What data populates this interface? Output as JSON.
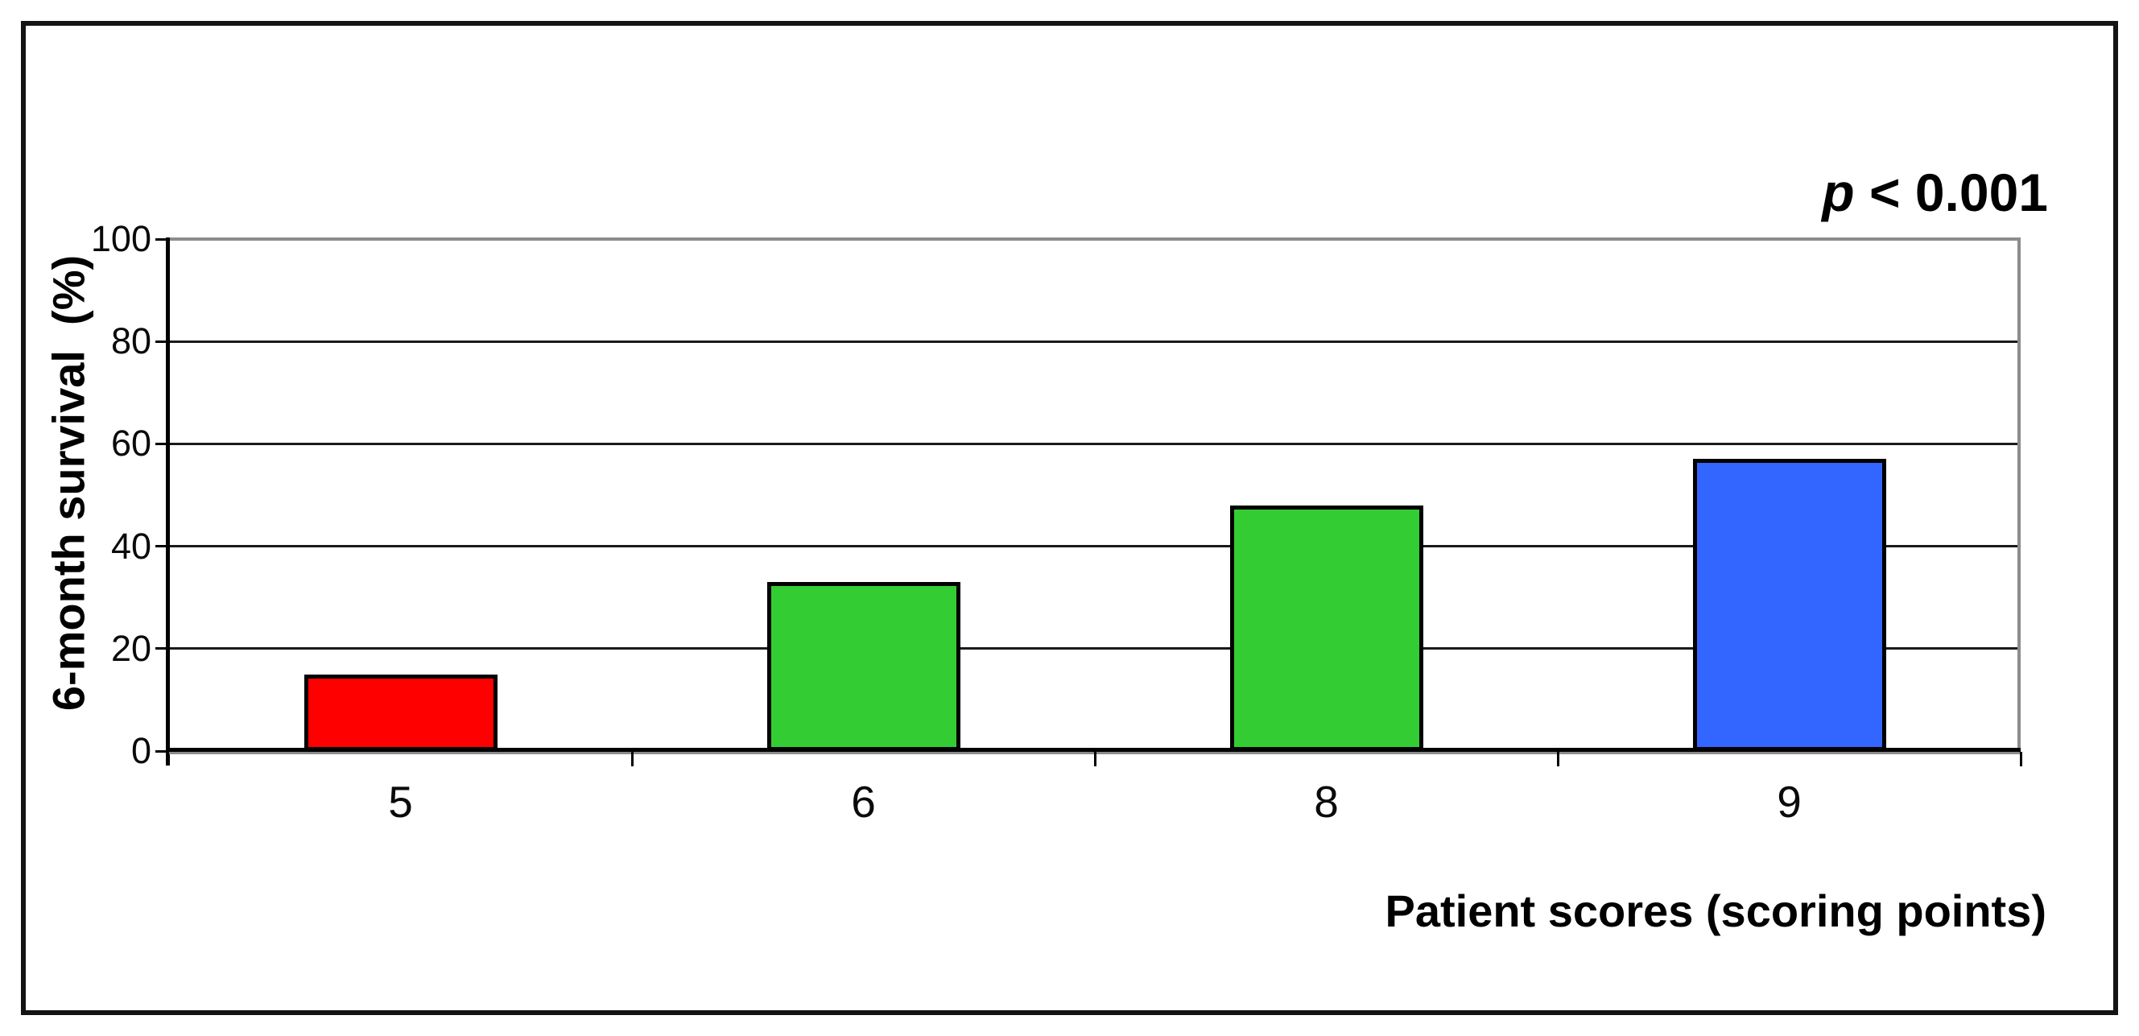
{
  "figure": {
    "p_annotation": {
      "italic_part": "p",
      "rest_part": " < 0.001"
    }
  },
  "chart_data": {
    "type": "bar",
    "categories": [
      "5",
      "6",
      "8",
      "9"
    ],
    "values": [
      15,
      33,
      48,
      57
    ],
    "series_name": "6-month survival",
    "bar_colors": [
      "#FF0000",
      "#33CC33",
      "#33CC33",
      "#3366FF"
    ],
    "title": "",
    "xlabel": "Patient scores (scoring points)",
    "ylabel": "6-month survival  (%)",
    "ylim": [
      0,
      100
    ],
    "yticks": [
      0,
      20,
      40,
      60,
      80,
      100
    ],
    "grid": "horizontal black gridlines; gray top and right plot frame",
    "legend": "none",
    "annotation": "p < 0.001",
    "annotation_position": "top-right"
  },
  "styles": {
    "background": "#FFFFFF",
    "figure_border": "#141414",
    "bar_border": "#000000",
    "gridline": "#1A1A1A",
    "plot_frame_gray": "#8C8C8C",
    "axis": "#000000",
    "text": "#000000"
  }
}
